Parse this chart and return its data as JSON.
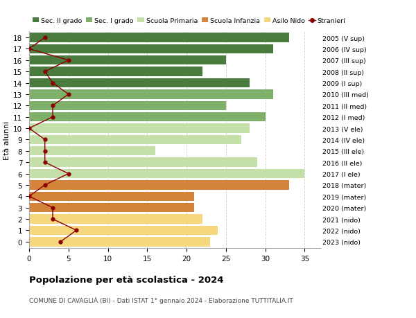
{
  "ages": [
    18,
    17,
    16,
    15,
    14,
    13,
    12,
    11,
    10,
    9,
    8,
    7,
    6,
    5,
    4,
    3,
    2,
    1,
    0
  ],
  "right_labels": [
    "2005 (V sup)",
    "2006 (IV sup)",
    "2007 (III sup)",
    "2008 (II sup)",
    "2009 (I sup)",
    "2010 (III med)",
    "2011 (II med)",
    "2012 (I med)",
    "2013 (V ele)",
    "2014 (IV ele)",
    "2015 (III ele)",
    "2016 (II ele)",
    "2017 (I ele)",
    "2018 (mater)",
    "2019 (mater)",
    "2020 (mater)",
    "2021 (nido)",
    "2022 (nido)",
    "2023 (nido)"
  ],
  "bar_values": [
    33,
    31,
    25,
    22,
    28,
    31,
    25,
    30,
    28,
    27,
    16,
    29,
    35,
    33,
    21,
    21,
    22,
    24,
    23
  ],
  "bar_colors": [
    "#4a7c3f",
    "#4a7c3f",
    "#4a7c3f",
    "#4a7c3f",
    "#4a7c3f",
    "#7fb069",
    "#7fb069",
    "#7fb069",
    "#c5dfa8",
    "#c5dfa8",
    "#c5dfa8",
    "#c5dfa8",
    "#c5dfa8",
    "#d4843a",
    "#d4843a",
    "#d4843a",
    "#f5d87e",
    "#f5d87e",
    "#f5d87e"
  ],
  "stranieri_values": [
    2,
    0,
    5,
    2,
    3,
    5,
    3,
    3,
    0,
    2,
    2,
    2,
    5,
    2,
    0,
    3,
    3,
    6,
    4
  ],
  "stranieri_color": "#8b0000",
  "legend_labels": [
    "Sec. II grado",
    "Sec. I grado",
    "Scuola Primaria",
    "Scuola Infanzia",
    "Asilo Nido",
    "Stranieri"
  ],
  "legend_colors": [
    "#4a7c3f",
    "#7fb069",
    "#c5dfa8",
    "#d4843a",
    "#f5d87e",
    "#8b0000"
  ],
  "title": "Popolazione per età scolastica - 2024",
  "subtitle": "COMUNE DI CAVAGLIÀ (BI) - Dati ISTAT 1° gennaio 2024 - Elaborazione TUTTITALIA.IT",
  "ylabel_left": "Età alunni",
  "xlim": [
    0,
    37
  ],
  "xticks": [
    0,
    5,
    10,
    15,
    20,
    25,
    30,
    35
  ],
  "bg_color": "#ffffff",
  "grid_color": "#cccccc"
}
